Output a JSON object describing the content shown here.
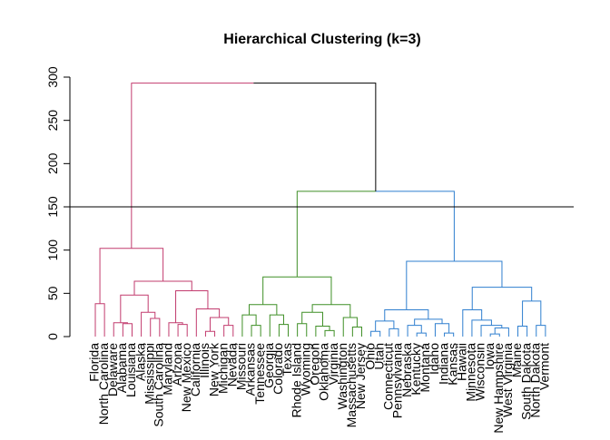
{
  "chart_data": {
    "type": "dendrogram",
    "title": "Hierarchical Clustering (k=3)",
    "labels": [
      "Florida",
      "North Carolina",
      "Delaware",
      "Alabama",
      "Louisiana",
      "Alaska",
      "Mississippi",
      "South Carolina",
      "Maryland",
      "Arizona",
      "New Mexico",
      "California",
      "Illinois",
      "New York",
      "Michigan",
      "Nevada",
      "Missouri",
      "Arkansas",
      "Tennessee",
      "Georgia",
      "Colorado",
      "Texas",
      "Rhode Island",
      "Wyoming",
      "Oregon",
      "Oklahoma",
      "Virginia",
      "Washington",
      "Massachusetts",
      "New Jersey",
      "Ohio",
      "Utah",
      "Connecticut",
      "Pennsylvania",
      "Nebraska",
      "Kentucky",
      "Montana",
      "Idaho",
      "Indiana",
      "Kansas",
      "Hawaii",
      "Minnesota",
      "Wisconsin",
      "Iowa",
      "New Hampshire",
      "West Virginia",
      "Maine",
      "South Dakota",
      "North Dakota",
      "Vermont"
    ],
    "tree": {
      "height": 293,
      "children": [
        {
          "height": 102,
          "children": [
            {
              "height": 38,
              "children": [
                0,
                1
              ]
            },
            {
              "height": 64,
              "children": [
                {
                  "height": 48,
                  "children": [
                    {
                      "height": 16,
                      "children": [
                        2,
                        {
                          "height": 15,
                          "children": [
                            3,
                            4
                          ]
                        }
                      ]
                    },
                    {
                      "height": 28,
                      "children": [
                        5,
                        {
                          "height": 21,
                          "children": [
                            6,
                            7
                          ]
                        }
                      ]
                    }
                  ]
                },
                {
                  "height": 53,
                  "children": [
                    {
                      "height": 16,
                      "children": [
                        8,
                        {
                          "height": 14,
                          "children": [
                            9,
                            10
                          ]
                        }
                      ]
                    },
                    {
                      "height": 32,
                      "children": [
                        11,
                        {
                          "height": 22,
                          "children": [
                            {
                              "height": 6,
                              "children": [
                                12,
                                13
                              ]
                            },
                            {
                              "height": 13,
                              "children": [
                                14,
                                15
                              ]
                            }
                          ]
                        }
                      ]
                    }
                  ]
                }
              ]
            }
          ]
        },
        {
          "height": 168,
          "children": [
            {
              "height": 69,
              "children": [
                {
                  "height": 37,
                  "children": [
                    {
                      "height": 25,
                      "children": [
                        16,
                        {
                          "height": 13,
                          "children": [
                            17,
                            18
                          ]
                        }
                      ]
                    },
                    {
                      "height": 25,
                      "children": [
                        19,
                        {
                          "height": 14,
                          "children": [
                            20,
                            21
                          ]
                        }
                      ]
                    }
                  ]
                },
                {
                  "height": 37,
                  "children": [
                    {
                      "height": 28,
                      "children": [
                        {
                          "height": 15,
                          "children": [
                            22,
                            23
                          ]
                        },
                        {
                          "height": 12,
                          "children": [
                            24,
                            {
                              "height": 7,
                              "children": [
                                25,
                                26
                              ]
                            }
                          ]
                        }
                      ]
                    },
                    {
                      "height": 22,
                      "children": [
                        27,
                        {
                          "height": 11,
                          "children": [
                            28,
                            29
                          ]
                        }
                      ]
                    }
                  ]
                }
              ]
            },
            {
              "height": 87,
              "children": [
                {
                  "height": 31,
                  "children": [
                    {
                      "height": 18,
                      "children": [
                        {
                          "height": 6,
                          "children": [
                            30,
                            31
                          ]
                        },
                        {
                          "height": 9,
                          "children": [
                            32,
                            33
                          ]
                        }
                      ]
                    },
                    {
                      "height": 20,
                      "children": [
                        {
                          "height": 13,
                          "children": [
                            34,
                            {
                              "height": 4,
                              "children": [
                                35,
                                36
                              ]
                            }
                          ]
                        },
                        {
                          "height": 15,
                          "children": [
                            37,
                            {
                              "height": 4,
                              "children": [
                                38,
                                39
                              ]
                            }
                          ]
                        }
                      ]
                    }
                  ]
                },
                {
                  "height": 57,
                  "children": [
                    {
                      "height": 31,
                      "children": [
                        40,
                        {
                          "height": 19,
                          "children": [
                            41,
                            {
                              "height": 13,
                              "children": [
                                42,
                                {
                                  "height": 10,
                                  "children": [
                                    {
                                      "height": 3,
                                      "children": [
                                        43,
                                        44
                                      ]
                                    },
                                    45
                                  ]
                                }
                              ]
                            }
                          ]
                        }
                      ]
                    },
                    {
                      "height": 41,
                      "children": [
                        {
                          "height": 12,
                          "children": [
                            46,
                            47
                          ]
                        },
                        {
                          "height": 13,
                          "children": [
                            48,
                            49
                          ]
                        }
                      ]
                    }
                  ]
                }
              ]
            }
          ]
        }
      ]
    },
    "cut": 150,
    "cluster_colors": [
      "#c23b6e",
      "#3f8f26",
      "#2f7fcf"
    ],
    "ylim": [
      0,
      300
    ],
    "yticks": [
      0,
      50,
      100,
      150,
      200,
      250,
      300
    ]
  }
}
